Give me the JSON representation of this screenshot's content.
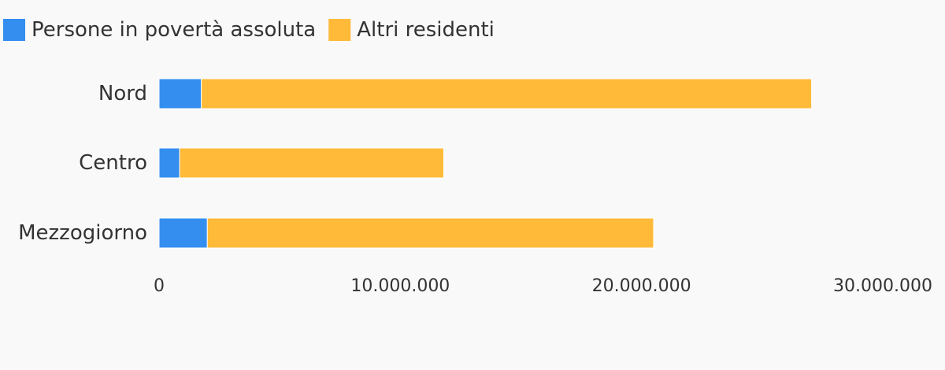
{
  "chart_data": {
    "type": "bar",
    "orientation": "horizontal",
    "stacked": true,
    "categories": [
      "Nord",
      "Centro",
      "Mezzogiorno"
    ],
    "series": [
      {
        "name": "Persone in povertà assoluta",
        "color": "#348ef0",
        "values": [
          1750000,
          850000,
          2000000
        ]
      },
      {
        "name": "Altri residenti",
        "color": "#ffba39",
        "values": [
          25300000,
          10950000,
          18500000
        ]
      }
    ],
    "xlim": [
      0,
      30000000
    ],
    "x_ticks": [
      {
        "value": 0,
        "label": "0"
      },
      {
        "value": 10000000,
        "label": "10.000.000"
      },
      {
        "value": 20000000,
        "label": "20.000.000"
      },
      {
        "value": 30000000,
        "label": "30.000.000"
      }
    ],
    "legend_position": "top-left",
    "grid": false
  }
}
